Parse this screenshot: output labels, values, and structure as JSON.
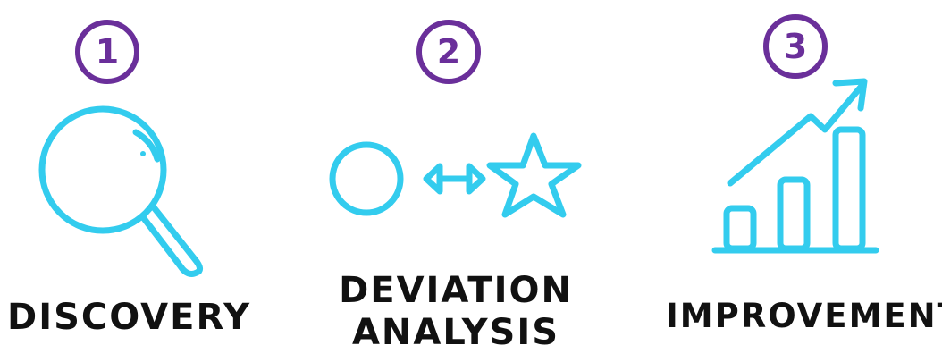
{
  "colors": {
    "badge": "#6a2f9a",
    "icon": "#33ccee",
    "text": "#111111"
  },
  "steps": [
    {
      "number": "1",
      "label": "DISCOVERY",
      "icon": "magnifying-glass-icon"
    },
    {
      "number": "2",
      "label_line1": "DEVIATION",
      "label_line2": "ANALYSIS",
      "icon": "circle-compare-star-icon"
    },
    {
      "number": "3",
      "label": "IMPROVEMENT",
      "icon": "growth-chart-icon"
    }
  ]
}
